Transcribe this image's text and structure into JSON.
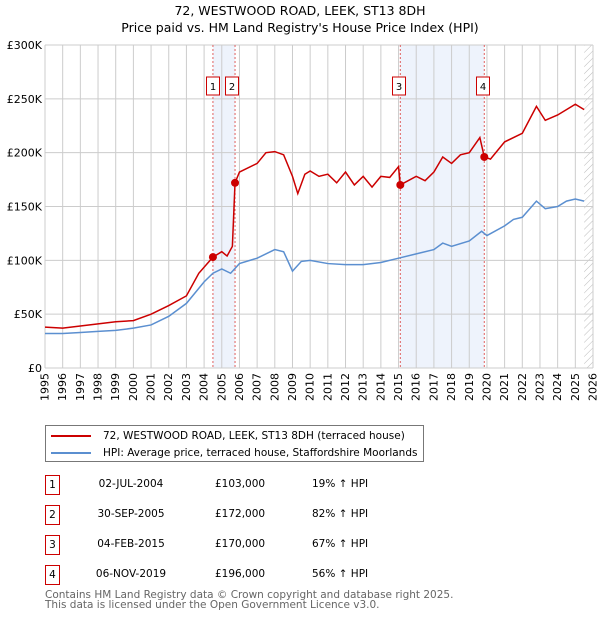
{
  "chart_data": {
    "type": "line",
    "title": "72, WESTWOOD ROAD, LEEK, ST13 8DH",
    "subtitle": "Price paid vs. HM Land Registry's House Price Index (HPI)",
    "xlim": [
      1995,
      2026
    ],
    "ylim": [
      0,
      300000
    ],
    "x_ticks": [
      "1995",
      "1996",
      "1997",
      "1998",
      "1999",
      "2000",
      "2001",
      "2002",
      "2003",
      "2004",
      "2005",
      "2006",
      "2007",
      "2008",
      "2009",
      "2010",
      "2011",
      "2012",
      "2013",
      "2014",
      "2015",
      "2016",
      "2017",
      "2018",
      "2019",
      "2020",
      "2021",
      "2022",
      "2023",
      "2024",
      "2025",
      "2026"
    ],
    "y_ticks": [
      {
        "v": 0,
        "label": "£0"
      },
      {
        "v": 50000,
        "label": "£50K"
      },
      {
        "v": 100000,
        "label": "£100K"
      },
      {
        "v": 150000,
        "label": "£150K"
      },
      {
        "v": 200000,
        "label": "£200K"
      },
      {
        "v": 250000,
        "label": "£250K"
      },
      {
        "v": 300000,
        "label": "£300K"
      }
    ],
    "grid": true,
    "series": [
      {
        "name": "72, WESTWOOD ROAD, LEEK, ST13 8DH (terraced house)",
        "color": "#cc0000",
        "x": [
          1995,
          1996,
          1997,
          1998,
          1999,
          2000,
          2001,
          2002,
          2003,
          2003.7,
          2004.5,
          2005,
          2005.3,
          2005.6,
          2005.75,
          2006,
          2007,
          2007.5,
          2008,
          2008.5,
          2009,
          2009.3,
          2009.7,
          2010,
          2010.5,
          2011,
          2011.5,
          2012,
          2012.5,
          2013,
          2013.5,
          2014,
          2014.5,
          2015,
          2015.1,
          2016,
          2016.5,
          2017,
          2017.5,
          2018,
          2018.5,
          2019,
          2019.6,
          2019.85,
          2020.2,
          2021,
          2022,
          2022.8,
          2023.3,
          2024,
          2024.5,
          2025,
          2025.5
        ],
        "y": [
          38000,
          37000,
          39000,
          41000,
          43000,
          44000,
          50000,
          58000,
          67000,
          88000,
          103000,
          108000,
          104000,
          113000,
          172000,
          182000,
          190000,
          200000,
          201000,
          198000,
          178000,
          162000,
          180000,
          183000,
          178000,
          180000,
          172000,
          182000,
          170000,
          178000,
          168000,
          178000,
          177000,
          187000,
          170000,
          178000,
          174000,
          182000,
          196000,
          190000,
          198000,
          200000,
          214000,
          196000,
          194000,
          210000,
          218000,
          243000,
          230000,
          235000,
          240000,
          245000,
          240000
        ]
      },
      {
        "name": "HPI: Average price, terraced house, Staffordshire Moorlands",
        "color": "#5b8fd0",
        "x": [
          1995,
          1996,
          1997,
          1998,
          1999,
          2000,
          2001,
          2002,
          2003,
          2004,
          2004.5,
          2005,
          2005.5,
          2006,
          2007,
          2008,
          2008.5,
          2009,
          2009.5,
          2010,
          2011,
          2012,
          2013,
          2014,
          2015,
          2016,
          2017,
          2017.5,
          2018,
          2019,
          2019.7,
          2020,
          2021,
          2021.5,
          2022,
          2022.8,
          2023.3,
          2024,
          2024.5,
          2025,
          2025.5
        ],
        "y": [
          32000,
          32000,
          33000,
          34000,
          35000,
          37000,
          40000,
          48000,
          60000,
          80000,
          88000,
          92000,
          88000,
          97000,
          102000,
          110000,
          108000,
          90000,
          99000,
          100000,
          97000,
          96000,
          96000,
          98000,
          102000,
          106000,
          110000,
          116000,
          113000,
          118000,
          127000,
          123000,
          132000,
          138000,
          140000,
          155000,
          148000,
          150000,
          155000,
          157000,
          155000
        ]
      }
    ],
    "sales": [
      {
        "n": "1",
        "x": 2004.5,
        "y": 103000,
        "date": "02-JUL-2004",
        "price": "£103,000",
        "hpi": "19% ↑ HPI"
      },
      {
        "n": "2",
        "x": 2005.75,
        "y": 172000,
        "date": "30-SEP-2005",
        "price": "£172,000",
        "hpi": "82% ↑ HPI"
      },
      {
        "n": "3",
        "x": 2015.1,
        "y": 170000,
        "date": "04-FEB-2015",
        "price": "£170,000",
        "hpi": "67% ↑ HPI"
      },
      {
        "n": "4",
        "x": 2019.85,
        "y": 196000,
        "date": "06-NOV-2019",
        "price": "£196,000",
        "hpi": "56% ↑ HPI"
      }
    ],
    "shaded_ranges": [
      [
        2004.5,
        2005.75
      ],
      [
        2015.1,
        2019.85
      ]
    ],
    "forecast_hatch_from": 2025.5
  },
  "footer": {
    "line1": "Contains HM Land Registry data © Crown copyright and database right 2025.",
    "line2": "This data is licensed under the Open Government Licence v3.0."
  }
}
